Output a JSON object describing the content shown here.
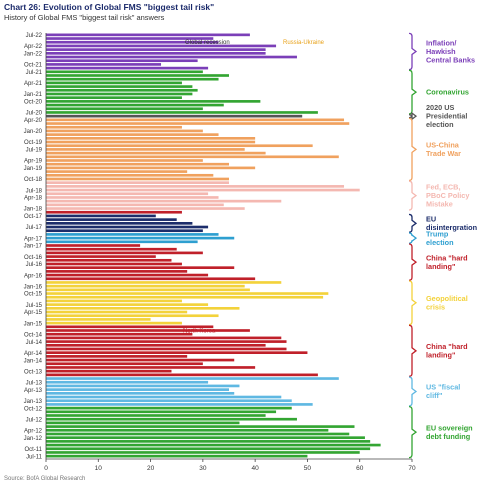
{
  "chart_data": {
    "type": "bar",
    "orientation": "horizontal",
    "title": "Chart 26: Evolution of Global FMS \"biggest tail risk\"",
    "subtitle": "History of Global FMS \"biggest tail risk\" answers",
    "source": "Source: BofA Global Research",
    "xlim": [
      0,
      70
    ],
    "xticks": [
      0,
      10,
      20,
      30,
      40,
      50,
      60,
      70
    ],
    "grid": false,
    "category_labels": [
      "Jul-22",
      "Apr-22",
      "Jan-22",
      "Oct-21",
      "Jul-21",
      "Apr-21",
      "Jan-21",
      "Oct-20",
      "Jul-20",
      "Apr-20",
      "Jan-20",
      "Oct-19",
      "Jul-19",
      "Apr-19",
      "Jan-19",
      "Oct-18",
      "Jul-18",
      "Apr-18",
      "Jan-18",
      "Oct-17",
      "Jul-17",
      "Apr-17",
      "Jan-17",
      "Oct-16",
      "Jul-16",
      "Apr-16",
      "Jan-16",
      "Oct-15",
      "Jul-15",
      "Apr-15",
      "Jan-15",
      "Oct-14",
      "Jul-14",
      "Apr-14",
      "Jan-14",
      "Oct-13",
      "Jul-13",
      "Apr-13",
      "Jan-13",
      "Oct-12",
      "Jul-12",
      "Apr-12",
      "Jan-12",
      "Oct-11",
      "Jul-11"
    ],
    "values_newest_first": [
      39,
      32,
      33,
      44,
      42,
      42,
      48,
      29,
      22,
      31,
      30,
      35,
      33,
      26,
      28,
      29,
      28,
      26,
      41,
      34,
      30,
      52,
      49,
      57,
      58,
      26,
      30,
      33,
      40,
      40,
      51,
      38,
      42,
      56,
      30,
      35,
      40,
      27,
      32,
      35,
      35,
      57,
      60,
      31,
      33,
      45,
      34,
      38,
      26,
      21,
      25,
      28,
      31,
      30,
      33,
      36,
      29,
      18,
      25,
      30,
      21,
      24,
      26,
      36,
      27,
      31,
      40,
      45,
      38,
      39,
      54,
      53,
      26,
      31,
      37,
      27,
      33,
      20,
      26,
      32,
      39,
      28,
      45,
      46,
      42,
      46,
      50,
      27,
      36,
      30,
      40,
      24,
      52,
      56,
      31,
      37,
      35,
      36,
      45,
      47,
      51,
      47,
      44,
      42,
      48,
      37,
      59,
      54,
      58,
      61,
      62,
      64,
      62,
      60,
      50
    ],
    "groups": [
      {
        "label": "Inflation/ Hawkish Central Banks",
        "color": "#7b3fb8",
        "count": 10
      },
      {
        "label": "Coronavirus",
        "color": "#33a532",
        "count": 12
      },
      {
        "label": "2020 US Presidential election",
        "color": "#555555",
        "count": 1
      },
      {
        "label": "US-China Trade War",
        "color": "#f0a15e",
        "count": 17
      },
      {
        "label": "Fed, ECB, PBoC Policy Mistake",
        "color": "#f4b8b1",
        "count": 8
      },
      {
        "label": "North Korea",
        "color": "#c0202a",
        "count": 1
      },
      {
        "label": "EU disintergration",
        "color": "#1c2d6b",
        "count": 5
      },
      {
        "label": "Trump election",
        "color": "#2e9fd0",
        "count": 3
      },
      {
        "label": "China \"hard landing\"",
        "color": "#c0202a",
        "count": 10
      },
      {
        "label": "Geopolitical crisis",
        "color": "#f3d23b",
        "count": 12
      },
      {
        "label": "China \"hard landing\"",
        "color": "#c0202a",
        "count": 14
      },
      {
        "label": "US \"fiscal cliff\"",
        "color": "#5fb8e2",
        "count": 8
      },
      {
        "label": "EU sovereign debt funding",
        "color": "#33a532",
        "count": 14
      }
    ],
    "bar_annotations": [
      {
        "text": "Global recession",
        "color": "#333333"
      },
      {
        "text": "Russia-Ukraine",
        "color": "#e8a21a"
      },
      {
        "text": "North Korea",
        "color": "#c0202a"
      }
    ]
  }
}
